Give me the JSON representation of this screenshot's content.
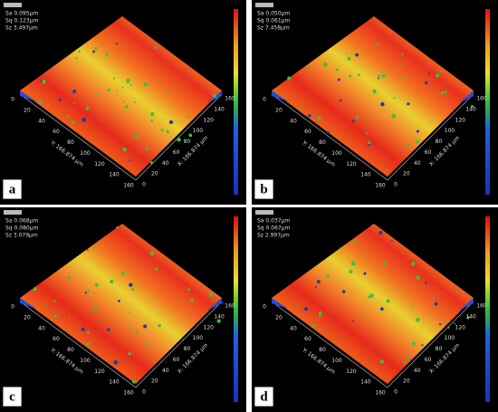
{
  "axis_ticks": [
    "0",
    "20",
    "40",
    "60",
    "80",
    "100",
    "120",
    "140",
    "160"
  ],
  "panels": [
    {
      "label": "a",
      "stats": [
        "Sa 0.095µm",
        "Sq 0.123µm",
        "Sz 3.497µm"
      ],
      "y_axis": "Y: 166.874 µm",
      "x_axis": "X: 166.874 µm"
    },
    {
      "label": "b",
      "stats": [
        "Sa 0.050µm",
        "Sq 0.061µm",
        "Sz 7.458µm"
      ],
      "y_axis": "Y: 166.874 µm",
      "x_axis": "X: 166.874 µm"
    },
    {
      "label": "c",
      "stats": [
        "Sa 0.068µm",
        "Sq 0.080µm",
        "Sz 3.079µm"
      ],
      "y_axis": "Y: 166.874 µm",
      "x_axis": "X: 166.874 µm"
    },
    {
      "label": "d",
      "stats": [
        "Sa 0.037µm",
        "Sq 0.067µm",
        "Sz 2.997µm"
      ],
      "y_axis": "Y: 166.874 µm",
      "x_axis": "X: 166.874 µm"
    }
  ]
}
